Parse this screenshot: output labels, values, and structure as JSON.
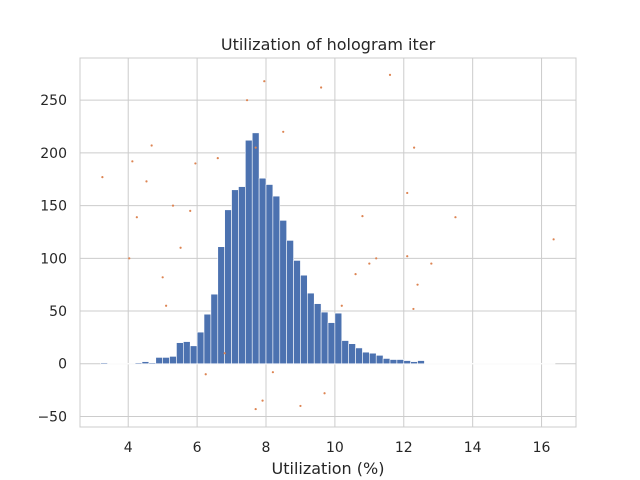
{
  "chart_data": {
    "type": "bar",
    "title": "Utilization of hologram iter",
    "xlabel": "Utilization (%)",
    "ylabel": "",
    "xlim": [
      2.6,
      17.0
    ],
    "ylim": [
      -60,
      290
    ],
    "xticks": [
      4,
      6,
      8,
      10,
      12,
      14,
      16
    ],
    "yticks": [
      -50,
      0,
      50,
      100,
      150,
      200,
      250
    ],
    "grid": true,
    "colors": {
      "bars": "#4c72b0",
      "points": "#dd8452",
      "grid": "#cccccc",
      "frame": "#cccccc"
    },
    "series": [
      {
        "type": "bar",
        "bin_width": 0.2,
        "bins_x": [
          3.2,
          3.4,
          3.6,
          3.8,
          4.0,
          4.2,
          4.4,
          4.6,
          4.8,
          5.0,
          5.2,
          5.4,
          5.6,
          5.8,
          6.0,
          6.2,
          6.4,
          6.6,
          6.8,
          7.0,
          7.2,
          7.4,
          7.6,
          7.8,
          8.0,
          8.2,
          8.4,
          8.6,
          8.8,
          9.0,
          9.2,
          9.4,
          9.6,
          9.8,
          10.0,
          10.2,
          10.4,
          10.6,
          10.8,
          11.0,
          11.2,
          11.4,
          11.6,
          11.8,
          12.0,
          12.2,
          12.4,
          12.6,
          12.8
        ],
        "values": [
          1,
          0,
          0,
          0,
          0,
          1,
          2,
          1,
          6,
          6,
          7,
          20,
          21,
          17,
          30,
          47,
          66,
          111,
          146,
          165,
          168,
          212,
          219,
          176,
          170,
          159,
          136,
          117,
          98,
          84,
          67,
          57,
          49,
          39,
          48,
          22,
          19,
          15,
          11,
          10,
          8,
          5,
          4,
          4,
          3,
          2,
          3,
          0,
          0
        ]
      },
      {
        "type": "scatter",
        "name": "",
        "points": [
          [
            3.25,
            177
          ],
          [
            4.12,
            192
          ],
          [
            4.25,
            139
          ],
          [
            4.68,
            207
          ],
          [
            4.03,
            100
          ],
          [
            4.53,
            173
          ],
          [
            5.0,
            82
          ],
          [
            5.3,
            150
          ],
          [
            5.52,
            110
          ],
          [
            5.8,
            145
          ],
          [
            5.1,
            55
          ],
          [
            5.95,
            190
          ],
          [
            16.35,
            118
          ],
          [
            13.5,
            139
          ],
          [
            12.1,
            162
          ],
          [
            12.3,
            205
          ],
          [
            12.28,
            52
          ],
          [
            11.6,
            274
          ],
          [
            9.6,
            262
          ],
          [
            7.45,
            250
          ],
          [
            7.95,
            268
          ],
          [
            7.7,
            205
          ],
          [
            6.8,
            10
          ],
          [
            6.25,
            -10
          ],
          [
            7.9,
            -35
          ],
          [
            8.2,
            -8
          ],
          [
            9.7,
            -28
          ],
          [
            7.7,
            -43
          ],
          [
            9.0,
            -40
          ],
          [
            10.2,
            55
          ],
          [
            10.6,
            85
          ],
          [
            11.2,
            100
          ],
          [
            11.0,
            95
          ],
          [
            10.8,
            140
          ],
          [
            12.1,
            102
          ],
          [
            12.8,
            95
          ],
          [
            12.4,
            75
          ],
          [
            6.6,
            195
          ],
          [
            8.5,
            220
          ]
        ]
      }
    ]
  }
}
